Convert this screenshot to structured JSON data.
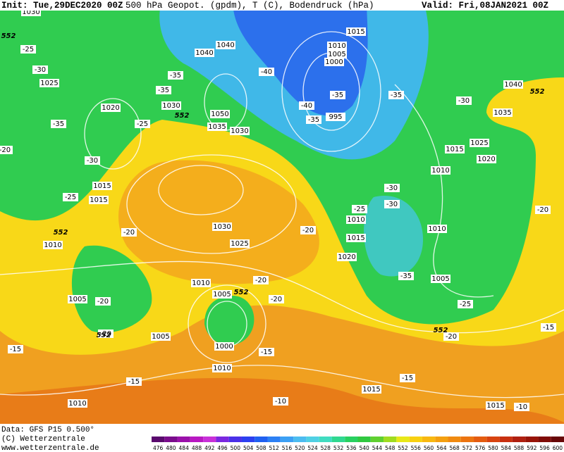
{
  "header": {
    "init": "Init: Tue,29DEC2020 00Z",
    "title": "500 hPa Geopot. (gpdm), T (C), Bodendruck (hPa)",
    "valid": "Valid: Fri,08JAN2021 00Z"
  },
  "footer": {
    "data": "Data: GFS P15 0.500°",
    "copyright": "(C) Wetterzentrale",
    "url": "www.wetterzentrale.de"
  },
  "isobar_labels": [
    1030,
    1040,
    1040,
    1015,
    1010,
    1005,
    1000,
    1025,
    1020,
    1030,
    1050,
    1035,
    1030,
    995,
    1040,
    1035,
    1025,
    1020,
    1015,
    1010,
    1015,
    1015,
    1030,
    1025,
    1010,
    1010,
    1015,
    1020,
    1010,
    1005,
    1010,
    1005,
    1005,
    1005,
    1000,
    1010,
    1015,
    1010,
    1015
  ],
  "temperature_labels": [
    -25,
    -30,
    -35,
    -35,
    -40,
    -35,
    -40,
    -35,
    -35,
    -30,
    -35,
    -25,
    -30,
    -25,
    -30,
    -30,
    -25,
    -20,
    -20,
    -20,
    -20,
    -20,
    -35,
    -25,
    -20,
    -15,
    -15,
    -15,
    -20,
    -15,
    -20,
    -10,
    -15,
    -10,
    -20
  ],
  "height_labels": [
    552,
    552,
    552,
    552,
    552,
    552,
    552
  ],
  "colorbar": {
    "ticks": [
      476,
      480,
      484,
      488,
      492,
      496,
      500,
      504,
      508,
      512,
      516,
      520,
      524,
      528,
      532,
      536,
      540,
      544,
      548,
      552,
      556,
      560,
      564,
      568,
      572,
      576,
      580,
      584,
      588,
      592,
      596,
      600
    ],
    "colors": [
      "#5a0a6e",
      "#7a0c8c",
      "#9a10aa",
      "#b818c2",
      "#c830d8",
      "#7a28e0",
      "#4a30e8",
      "#2c40f0",
      "#2060f0",
      "#2c80f4",
      "#3ca0f4",
      "#4cbcf0",
      "#50d0e4",
      "#40dcc0",
      "#30d890",
      "#28d060",
      "#30c840",
      "#60d030",
      "#a0dc20",
      "#e8e818",
      "#f8d010",
      "#f8b810",
      "#f4a010",
      "#f08a10",
      "#ec7410",
      "#e45c10",
      "#d84410",
      "#c83010",
      "#b02010",
      "#981408",
      "#800c08",
      "#680808"
    ]
  }
}
